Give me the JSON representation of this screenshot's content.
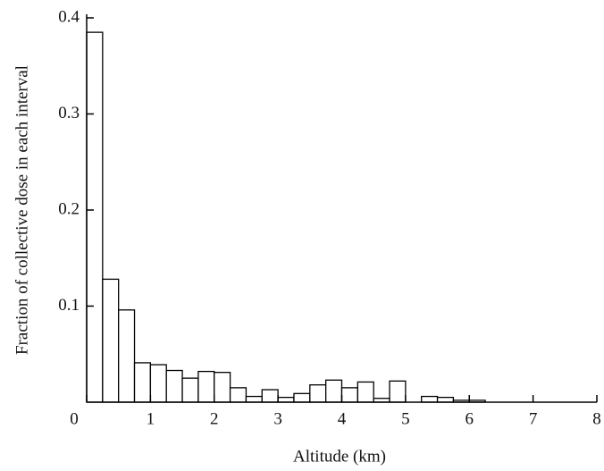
{
  "chart_data": {
    "type": "histogram",
    "x_label": "Altitude (km)",
    "y_label": "Fraction of collective dose in each interval",
    "bins": [
      0,
      0.25,
      0.5,
      0.75,
      1,
      1.25,
      1.5,
      1.75,
      2,
      2.25,
      2.5,
      2.75,
      3,
      3.25,
      3.5,
      3.75,
      4,
      4.25,
      4.5,
      4.75,
      5,
      5.25,
      5.5,
      5.75,
      6,
      6.25
    ],
    "counts": [
      0.385,
      0.128,
      0.096,
      0.041,
      0.039,
      0.033,
      0.025,
      0.032,
      0.031,
      0.015,
      0.006,
      0.013,
      0.005,
      0.009,
      0.018,
      0.023,
      0.015,
      0.021,
      0.004,
      0.022,
      0,
      0.006,
      0.005,
      0.002,
      0.002
    ],
    "color": "#ffffff",
    "edge_color": "#000000",
    "xlim": [
      0,
      8
    ],
    "xticks": [
      0,
      1,
      2,
      3,
      4,
      5,
      6,
      7,
      8
    ],
    "ylim": [
      0,
      0.4
    ],
    "yticks": [
      0.1,
      0.2,
      0.3,
      0.4
    ],
    "grid": false
  }
}
